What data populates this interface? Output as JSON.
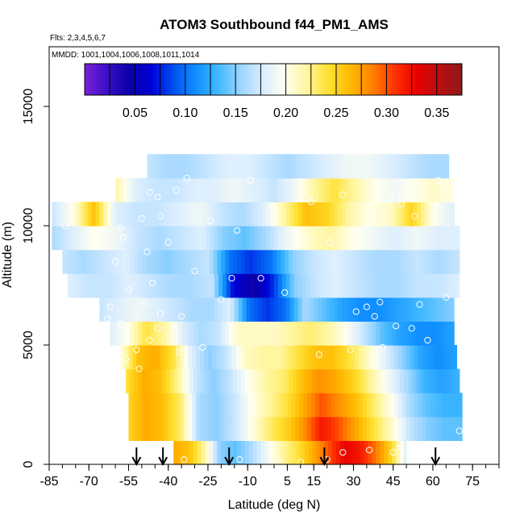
{
  "chart_data": {
    "type": "heatmap",
    "title": "ATOM3 Southbound f44_PM1_AMS",
    "flights_note": "Flts: 2,3,4,5,6,7",
    "mmdd_note": "MMDD: 1001,1004,1006,1008,1011,1014",
    "xlabel": "Latitude (deg N)",
    "ylabel": "Altitude (m)",
    "xlim": [
      -85,
      85
    ],
    "ylim": [
      0,
      17500
    ],
    "x_tick_labels": [
      "-85",
      "-70",
      "-55",
      "-40",
      "-25",
      "-10",
      "5",
      "15",
      "30",
      "45",
      "60",
      "75"
    ],
    "y_tick_labels": [
      "0",
      "5000",
      "10000",
      "15000"
    ],
    "colorbar": {
      "range": [
        0.0,
        0.375
      ],
      "tick_labels": [
        "0.05",
        "0.10",
        "0.15",
        "0.20",
        "0.25",
        "0.30",
        "0.35"
      ],
      "colors": [
        "#7a1fd6",
        "#3a10c8",
        "#0a00a8",
        "#0000d8",
        "#0050f0",
        "#1090ff",
        "#40b8ff",
        "#9ad4ff",
        "#d8ecff",
        "#fffff0",
        "#fff6a0",
        "#ffe030",
        "#ffb800",
        "#ff8000",
        "#ff3000",
        "#e80000",
        "#b81010",
        "#901818"
      ]
    },
    "profile_arrows_lat": [
      -52,
      -42,
      -17,
      19,
      61
    ],
    "field_rows": [
      {
        "alt": 0,
        "lat_min": -38,
        "lat_max": 50,
        "values": [
          0.27,
          0.26,
          0.22,
          0.15,
          0.14,
          0.16,
          0.19,
          0.22,
          0.24,
          0.27,
          0.3,
          0.33,
          0.32,
          0.29,
          0.25,
          0.18
        ]
      },
      {
        "alt": 1000,
        "lat_min": -55,
        "lat_max": 71,
        "values": [
          0.25,
          0.27,
          0.26,
          0.23,
          0.16,
          0.15,
          0.17,
          0.2,
          0.23,
          0.25,
          0.28,
          0.32,
          0.3,
          0.27,
          0.24,
          0.21,
          0.17,
          0.15,
          0.14,
          0.14
        ]
      },
      {
        "alt": 2000,
        "lat_min": -55,
        "lat_max": 71,
        "values": [
          0.25,
          0.27,
          0.26,
          0.23,
          0.16,
          0.15,
          0.17,
          0.2,
          0.22,
          0.24,
          0.27,
          0.3,
          0.28,
          0.26,
          0.23,
          0.2,
          0.16,
          0.14,
          0.13,
          0.13
        ]
      },
      {
        "alt": 3000,
        "lat_min": -56,
        "lat_max": 70,
        "values": [
          0.24,
          0.27,
          0.26,
          0.22,
          0.17,
          0.15,
          0.17,
          0.2,
          0.22,
          0.23,
          0.26,
          0.28,
          0.27,
          0.25,
          0.22,
          0.19,
          0.16,
          0.13,
          0.12,
          0.13
        ]
      },
      {
        "alt": 4000,
        "lat_min": -58,
        "lat_max": 69,
        "values": [
          0.2,
          0.26,
          0.27,
          0.24,
          0.18,
          0.15,
          0.17,
          0.21,
          0.22,
          0.22,
          0.24,
          0.26,
          0.26,
          0.24,
          0.21,
          0.18,
          0.15,
          0.12,
          0.11,
          0.12
        ]
      },
      {
        "alt": 5000,
        "lat_min": -62,
        "lat_max": 68,
        "values": [
          0.18,
          0.2,
          0.24,
          0.22,
          0.18,
          0.16,
          0.17,
          0.21,
          0.21,
          0.21,
          0.22,
          0.23,
          0.22,
          0.2,
          0.17,
          0.14,
          0.12,
          0.11,
          0.11,
          0.12
        ]
      },
      {
        "alt": 6000,
        "lat_min": -66,
        "lat_max": 68,
        "values": [
          0.17,
          0.18,
          0.19,
          0.18,
          0.17,
          0.16,
          0.16,
          0.18,
          0.1,
          0.08,
          0.1,
          0.16,
          0.14,
          0.12,
          0.11,
          0.11,
          0.12,
          0.13,
          0.14,
          0.15
        ]
      },
      {
        "alt": 7000,
        "lat_min": -78,
        "lat_max": 70,
        "values": [
          0.18,
          0.17,
          0.17,
          0.18,
          0.17,
          0.16,
          0.16,
          0.17,
          0.07,
          0.04,
          0.08,
          0.15,
          0.17,
          0.18,
          0.17,
          0.16,
          0.16,
          0.17,
          0.17,
          0.18
        ]
      },
      {
        "alt": 8000,
        "lat_min": -80,
        "lat_max": 70,
        "values": [
          0.17,
          0.16,
          0.17,
          0.18,
          0.16,
          0.15,
          0.16,
          0.17,
          0.1,
          0.08,
          0.1,
          0.15,
          0.17,
          0.18,
          0.17,
          0.16,
          0.16,
          0.17,
          0.16,
          0.17
        ]
      },
      {
        "alt": 9000,
        "lat_min": -84,
        "lat_max": 70,
        "values": [
          0.16,
          0.18,
          0.2,
          0.19,
          0.17,
          0.16,
          0.17,
          0.18,
          0.15,
          0.14,
          0.16,
          0.19,
          0.21,
          0.22,
          0.2,
          0.19,
          0.18,
          0.19,
          0.18,
          0.18
        ]
      },
      {
        "alt": 10000,
        "lat_min": -84,
        "lat_max": 68,
        "values": [
          0.17,
          0.2,
          0.26,
          0.18,
          0.17,
          0.17,
          0.18,
          0.19,
          0.17,
          0.16,
          0.18,
          0.22,
          0.26,
          0.25,
          0.22,
          0.2,
          0.21,
          0.25,
          0.2,
          0.18
        ]
      },
      {
        "alt": 11000,
        "lat_min": -60,
        "lat_max": 68,
        "values": [
          0.22,
          0.18,
          0.17,
          0.17,
          0.18,
          0.18,
          0.19,
          0.18,
          0.17,
          0.19,
          0.22,
          0.24,
          0.22,
          0.2,
          0.19,
          0.2,
          0.21,
          0.2
        ]
      },
      {
        "alt": 12000,
        "lat_min": -48,
        "lat_max": 66,
        "values": [
          0.17,
          0.16,
          0.16,
          0.17,
          0.18,
          0.18,
          0.17,
          0.16,
          0.17,
          0.18,
          0.19,
          0.19,
          0.18,
          0.17,
          0.16,
          0.16
        ]
      }
    ],
    "sample_points": [
      [
        -56,
        4400
      ],
      [
        -52,
        4800
      ],
      [
        -47,
        5200
      ],
      [
        -36,
        4700
      ],
      [
        -27,
        4900
      ],
      [
        -44,
        5700
      ],
      [
        -58,
        5900
      ],
      [
        -63,
        6100
      ],
      [
        -67,
        6500
      ],
      [
        -62,
        6600
      ],
      [
        -49,
        6700
      ],
      [
        -43,
        6300
      ],
      [
        -35,
        6200
      ],
      [
        -20,
        6900
      ],
      [
        -55,
        7300
      ],
      [
        -46,
        7600
      ],
      [
        -30,
        8100
      ],
      [
        -16,
        7800
      ],
      [
        -5,
        7800
      ],
      [
        4,
        7200
      ],
      [
        -60,
        8500
      ],
      [
        -48,
        8900
      ],
      [
        -40,
        9300
      ],
      [
        -57,
        9500
      ],
      [
        -58,
        9900
      ],
      [
        -43,
        10400
      ],
      [
        -24,
        10200
      ],
      [
        -14,
        9800
      ],
      [
        -66,
        9700
      ],
      [
        -79,
        10000
      ],
      [
        -50,
        10300
      ],
      [
        -47,
        11400
      ],
      [
        -44,
        11200
      ],
      [
        -37,
        11500
      ],
      [
        -33,
        12000
      ],
      [
        -9,
        11900
      ],
      [
        14,
        11000
      ],
      [
        26,
        11300
      ],
      [
        44,
        11100
      ],
      [
        48,
        10900
      ],
      [
        53,
        10400
      ],
      [
        62,
        11900
      ],
      [
        64,
        11800
      ],
      [
        12,
        9400
      ],
      [
        21,
        9300
      ],
      [
        33,
        9500
      ],
      [
        31,
        6400
      ],
      [
        38,
        6200
      ],
      [
        46,
        5800
      ],
      [
        52,
        5700
      ],
      [
        58,
        5200
      ],
      [
        41,
        4900
      ],
      [
        29,
        4800
      ],
      [
        17,
        4600
      ],
      [
        35,
        6600
      ],
      [
        40,
        6800
      ],
      [
        55,
        6700
      ],
      [
        65,
        7000
      ],
      [
        70,
        1400
      ],
      [
        -34,
        200
      ],
      [
        -13,
        200
      ],
      [
        2,
        100
      ],
      [
        10,
        100
      ],
      [
        26,
        500
      ],
      [
        45,
        500
      ],
      [
        53,
        200
      ],
      [
        48,
        700
      ],
      [
        36,
        600
      ],
      [
        20,
        200
      ],
      [
        -51,
        4000
      ]
    ]
  }
}
